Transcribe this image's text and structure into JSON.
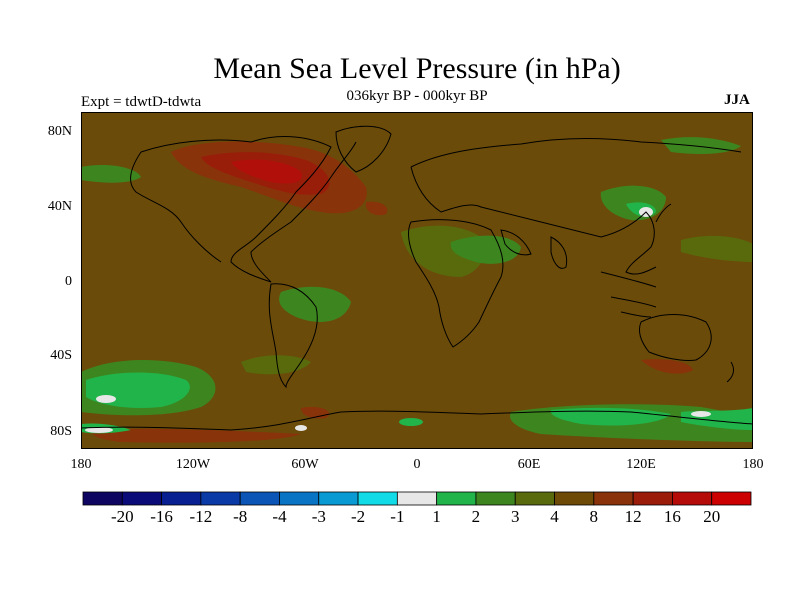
{
  "header": {
    "title": "Mean Sea Level Pressure (in hPa)",
    "subtitle": "036kyr BP - 000kyr BP",
    "experiment": "Expt = tdwtD-tdwta",
    "season": "JJA"
  },
  "axes": {
    "lat_labels": [
      "80N",
      "40N",
      "0",
      "40S",
      "80S"
    ],
    "lon_labels": [
      "180",
      "120W",
      "60W",
      "0",
      "60E",
      "120E",
      "180"
    ]
  },
  "legend": {
    "labels": [
      "-20",
      "-16",
      "-12",
      "-8",
      "-4",
      "-3",
      "-2",
      "-1",
      "1",
      "2",
      "3",
      "4",
      "8",
      "12",
      "16",
      "20"
    ],
    "colors": [
      "#0d0560",
      "#0a0a78",
      "#071f90",
      "#0a3aa5",
      "#0a55b5",
      "#0a74c4",
      "#0a9ad3",
      "#11dbe6",
      "#e7e7e7",
      "#21b44a",
      "#3d861f",
      "#586a0c",
      "#6e4a07",
      "#8a320a",
      "#9c1c0a",
      "#b50c0a",
      "#cc0000"
    ]
  },
  "colors": {
    "background": "#6b4b0a",
    "land_outline": "#000000"
  }
}
